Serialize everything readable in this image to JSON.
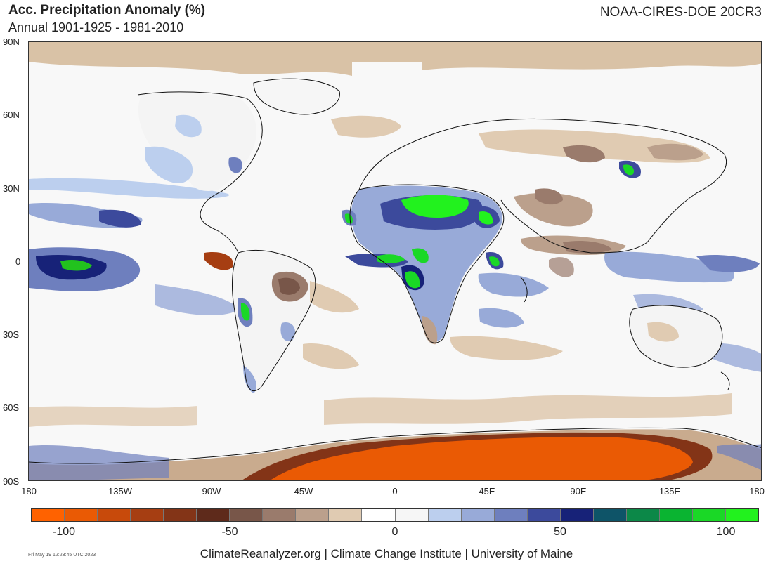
{
  "header": {
    "title": "Acc. Precipitation Anomaly (%)",
    "subtitle": "Annual 1901-1925 - 1981-2010",
    "dataset": "NOAA-CIRES-DOE 20CR3"
  },
  "axes": {
    "lat_ticks": [
      {
        "label": "90N",
        "value": 90
      },
      {
        "label": "60N",
        "value": 60
      },
      {
        "label": "30N",
        "value": 30
      },
      {
        "label": "0",
        "value": 0
      },
      {
        "label": "30S",
        "value": -30
      },
      {
        "label": "60S",
        "value": -60
      },
      {
        "label": "90S",
        "value": -90
      }
    ],
    "lon_ticks": [
      {
        "label": "180",
        "value": -180
      },
      {
        "label": "135W",
        "value": -135
      },
      {
        "label": "90W",
        "value": -90
      },
      {
        "label": "45W",
        "value": -45
      },
      {
        "label": "0",
        "value": 0
      },
      {
        "label": "45E",
        "value": 45
      },
      {
        "label": "90E",
        "value": 90
      },
      {
        "label": "135E",
        "value": 135
      },
      {
        "label": "180",
        "value": 180
      }
    ]
  },
  "colorbar": {
    "colors": [
      "#ff6200",
      "#ea5a04",
      "#c84a0b",
      "#a63e12",
      "#833417",
      "#5e2a1b",
      "#785649",
      "#9a7b6c",
      "#bba08c",
      "#e0cbb2",
      "#ffffff",
      "#f6f6f6",
      "#bccfee",
      "#98aad8",
      "#6e7fbe",
      "#3c4a9c",
      "#172278",
      "#0e5468",
      "#0c8848",
      "#0ab431",
      "#1ad826",
      "#22f21e"
    ],
    "labels": [
      {
        "label": "-100",
        "value": -100
      },
      {
        "label": "-50",
        "value": -50
      },
      {
        "label": "0",
        "value": 0
      },
      {
        "label": "50",
        "value": 50
      },
      {
        "label": "100",
        "value": 100
      }
    ],
    "range": [
      -110,
      110
    ]
  },
  "footer": {
    "credit": "ClimateReanalyzer.org | Climate Change Institute | University of Maine",
    "timestamp": "Fri May 19 12:23:45 UTC 2023"
  }
}
